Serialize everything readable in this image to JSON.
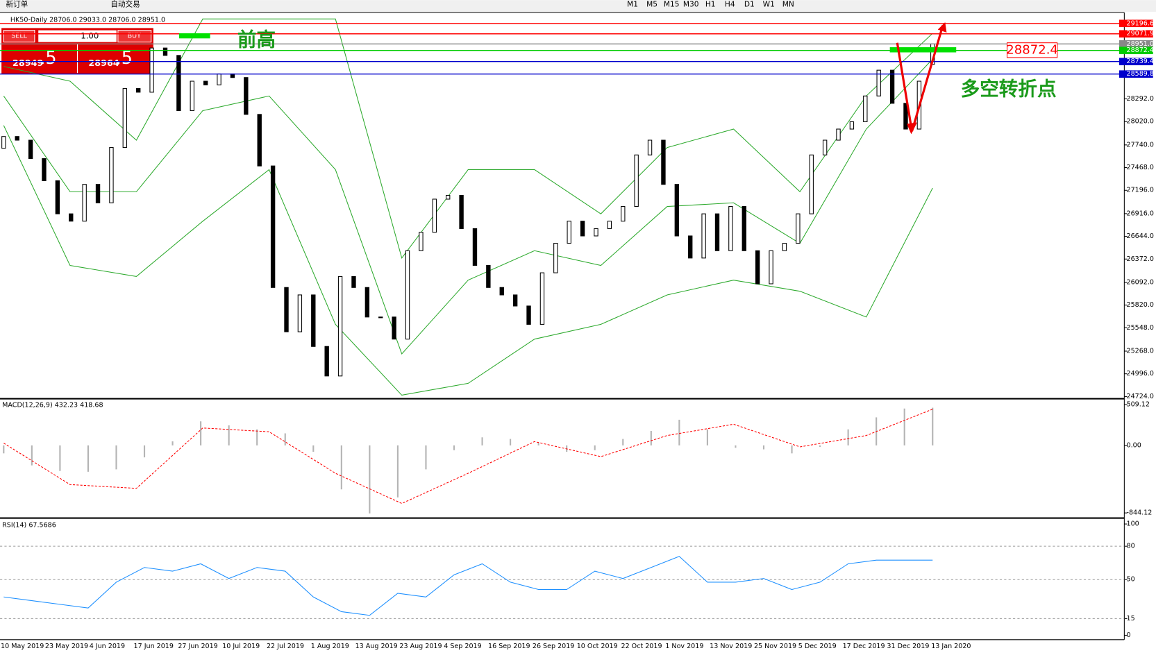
{
  "toolbar": {
    "new_order": "新订单",
    "auto_trading": "自动交易",
    "timeframes": [
      "M1",
      "M5",
      "M15",
      "M30",
      "H1",
      "H4",
      "D1",
      "W1",
      "MN"
    ]
  },
  "order_panel": {
    "sell": "SELL",
    "buy": "BUY",
    "volume": "1.00",
    "sell_price": "28949",
    "sell_pip": ".5",
    "buy_price": "28964",
    "buy_pip": ".5"
  },
  "x_labels": [
    "10 May 2019",
    "23 May 2019",
    "4 Jun 2019",
    "17 Jun 2019",
    "27 Jun 2019",
    "10 Jul 2019",
    "22 Jul 2019",
    "1 Aug 2019",
    "13 Aug 2019",
    "23 Aug 2019",
    "4 Sep 2019",
    "16 Sep 2019",
    "26 Sep 2019",
    "10 Oct 2019",
    "22 Oct 2019",
    "1 Nov 2019",
    "13 Nov 2019",
    "25 Nov 2019",
    "5 Dec 2019",
    "17 Dec 2019",
    "31 Dec 2019",
    "13 Jan 2020"
  ],
  "chart_data": [
    {
      "type": "candlestick",
      "title": "HK50-Daily  28706.0 29033.0 28706.0 28951.0",
      "open": [
        27700,
        27841,
        27797,
        27576,
        27311,
        26914,
        26826,
        27267,
        27046,
        27709,
        28416,
        28372,
        28902,
        28813,
        28151,
        28504,
        28460,
        28592,
        28548,
        28106,
        27488,
        26031,
        25500,
        25942,
        25324,
        24970,
        26163,
        26031,
        25677,
        25677,
        25412,
        26472,
        26693,
        27090,
        27135,
        26737,
        26296,
        26031,
        25942,
        25809,
        25589,
        26207,
        26561,
        26826,
        26649,
        26737,
        26826,
        27002,
        27620,
        27797,
        27267,
        26649,
        26384,
        26914,
        26472,
        27002,
        26472,
        26075,
        26472,
        26561,
        26914,
        27620,
        27797,
        27930,
        28018,
        28327,
        28636,
        28239,
        27930,
        28706
      ],
      "close": [
        27841,
        27797,
        27576,
        27311,
        26914,
        26826,
        27267,
        27046,
        27709,
        28416,
        28372,
        28902,
        28813,
        28151,
        28504,
        28460,
        28592,
        28548,
        28106,
        27488,
        26031,
        25500,
        25942,
        25324,
        24970,
        26163,
        26031,
        25677,
        25677,
        25412,
        26472,
        26693,
        27090,
        27135,
        26737,
        26296,
        26031,
        25942,
        25809,
        25589,
        26207,
        26561,
        26826,
        26649,
        26737,
        26826,
        27002,
        27620,
        27797,
        27267,
        26649,
        26384,
        26914,
        26472,
        27002,
        26472,
        26075,
        26472,
        26561,
        26914,
        27620,
        27797,
        27930,
        28018,
        28327,
        28636,
        28239,
        27930,
        28504,
        28951
      ],
      "bands": [
        {
          "color": "#2eaa2e",
          "values": [
            28681,
            28504,
            27797,
            29250,
            29250,
            29250,
            26384,
            27444,
            27444,
            26914,
            27709,
            27930,
            27179,
            28327,
            29078
          ]
        },
        {
          "color": "#2eaa2e",
          "values": [
            28327,
            27179,
            27179,
            28151,
            28327,
            27444,
            25235,
            26119,
            26472,
            26295,
            27002,
            27046,
            26560,
            27930,
            28769
          ]
        },
        {
          "color": "#2eaa2e",
          "values": [
            27974,
            26295,
            26163,
            26825,
            27444,
            25589,
            24740,
            24882,
            25412,
            25589,
            25942,
            26119,
            25986,
            25677,
            27223
          ]
        }
      ],
      "ylim": [
        24724,
        29300
      ],
      "yticks": [
        {
          "value": 28292,
          "label": "28292.0"
        },
        {
          "value": 28020,
          "label": "28020.0"
        },
        {
          "value": 27740,
          "label": "27740.0"
        },
        {
          "value": 27468,
          "label": "27468.0"
        },
        {
          "value": 27196,
          "label": "27196.0"
        },
        {
          "value": 26916,
          "label": "26916.0"
        },
        {
          "value": 26644,
          "label": "26644.0"
        },
        {
          "value": 26372,
          "label": "26372.0"
        },
        {
          "value": 26092,
          "label": "26092.0"
        },
        {
          "value": 25820,
          "label": "25820.0"
        },
        {
          "value": 25548,
          "label": "25548.0"
        },
        {
          "value": 25268,
          "label": "25268.0"
        },
        {
          "value": 24996,
          "label": "24996.0"
        },
        {
          "value": 24724,
          "label": "24724.0"
        }
      ],
      "levels": [
        {
          "value": 29196.6,
          "color": "#ff0000"
        },
        {
          "value": 29071.9,
          "color": "#ff0000"
        },
        {
          "value": 28951,
          "label": "28951.0",
          "color": "#888888"
        },
        {
          "value": 28872.4,
          "color": "#00cc00"
        },
        {
          "value": 28739.4,
          "color": "#0000cc"
        },
        {
          "value": 28589.8,
          "color": "#0000cc"
        }
      ],
      "annotations": {
        "prev_high": "前高",
        "turning_point": "多空转折点",
        "level_box": "28872.4"
      }
    },
    {
      "type": "macd",
      "title": "MACD(12,26,9) 432.23 418.68",
      "ylim": [
        -844.12,
        509.12
      ],
      "yticks": [
        509.12,
        {
          "value": 0,
          "label": "0.00"
        },
        -844.12
      ],
      "histogram": [
        -100,
        -250,
        -320,
        -330,
        -300,
        -150,
        50,
        300,
        250,
        200,
        150,
        -80,
        -550,
        -850,
        -650,
        -300,
        -60,
        100,
        80,
        30,
        -80,
        -60,
        80,
        180,
        320,
        200,
        -30,
        -50,
        -100,
        -20,
        200,
        350,
        460,
        470
      ],
      "signal": [
        28,
        -490,
        -537,
        217,
        170,
        -349,
        -726,
        -349,
        47,
        -141,
        123,
        264,
        -19,
        123,
        452
      ],
      "signal_color": "#ff0000",
      "histogram_color": "#b4b4b4"
    },
    {
      "type": "line",
      "title": "RSI(14) 67.5686",
      "ylim": [
        0,
        100
      ],
      "yticks": [
        100,
        80,
        50,
        15,
        0
      ],
      "color": "#1e90ff",
      "values": [
        34.4,
        31.1,
        27.8,
        24.5,
        47.7,
        60.9,
        57.6,
        64.2,
        51,
        60.9,
        57.6,
        34.4,
        21.2,
        17.9,
        37.7,
        34.4,
        54.3,
        64.2,
        47.7,
        41.1,
        41.1,
        57.6,
        51,
        60.9,
        70.9,
        47.7,
        47.7,
        51,
        41.1,
        47.7,
        64.2,
        67.5,
        67.5,
        67.5
      ]
    }
  ]
}
